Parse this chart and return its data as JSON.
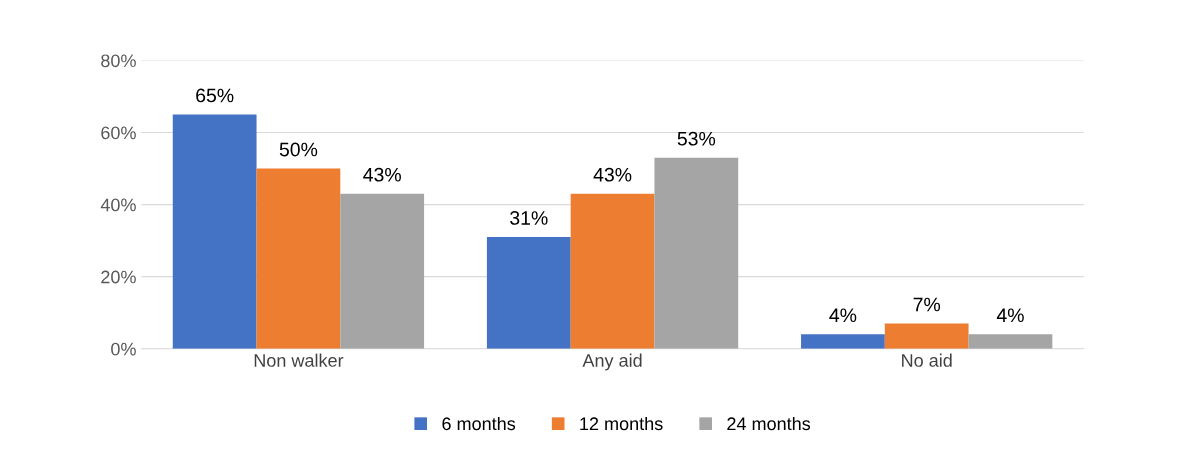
{
  "chart_data": {
    "type": "bar",
    "categories": [
      "Non walker",
      "Any aid",
      "No aid"
    ],
    "series": [
      {
        "name": "6 months",
        "color": "#4472c4",
        "values": [
          65,
          31,
          4
        ],
        "value_labels": [
          "65%",
          "31%",
          "4%"
        ]
      },
      {
        "name": "12 months",
        "color": "#ed7d31",
        "values": [
          50,
          43,
          7
        ],
        "value_labels": [
          "50%",
          "43%",
          "7%"
        ]
      },
      {
        "name": "24 months",
        "color": "#a5a5a5",
        "values": [
          43,
          53,
          4
        ],
        "value_labels": [
          "43%",
          "53%",
          "4%"
        ]
      }
    ],
    "ylim": [
      0,
      80
    ],
    "yticks": [
      {
        "value": 0,
        "label": "0%"
      },
      {
        "value": 20,
        "label": "20%"
      },
      {
        "value": 40,
        "label": "40%"
      },
      {
        "value": 60,
        "label": "60%"
      },
      {
        "value": 80,
        "label": "80%"
      }
    ],
    "grid": "y",
    "legend": "bottom"
  }
}
